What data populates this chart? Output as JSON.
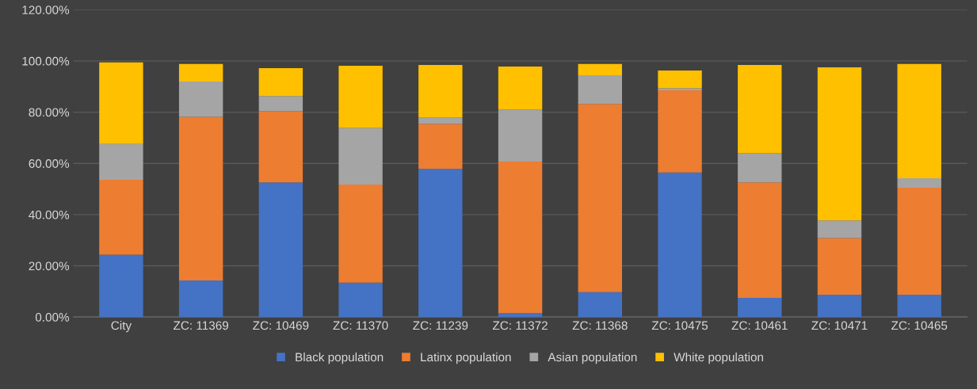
{
  "chart_data": {
    "type": "bar",
    "stacked": true,
    "categories": [
      "City",
      "ZC: 11369",
      "ZC: 10469",
      "ZC: 11370",
      "ZC: 11239",
      "ZC: 11372",
      "ZC: 11368",
      "ZC: 10475",
      "ZC: 10461",
      "ZC: 10471",
      "ZC: 10465"
    ],
    "series": [
      {
        "name": "Black population",
        "color": "#4472c4",
        "values": [
          24.3,
          14.3,
          52.6,
          13.4,
          57.9,
          1.6,
          9.7,
          56.4,
          7.5,
          8.7,
          8.7
        ]
      },
      {
        "name": "Latinx population",
        "color": "#ed7d31",
        "values": [
          29.3,
          63.9,
          27.8,
          38.3,
          17.5,
          59.1,
          73.5,
          32.1,
          45.1,
          22.1,
          41.8
        ]
      },
      {
        "name": "Asian population",
        "color": "#a5a5a5",
        "values": [
          14.0,
          13.7,
          5.9,
          22.1,
          2.5,
          20.3,
          11.2,
          0.9,
          11.3,
          6.9,
          3.7
        ]
      },
      {
        "name": "White population",
        "color": "#ffc000",
        "values": [
          31.8,
          6.9,
          10.9,
          24.3,
          20.5,
          16.8,
          4.4,
          6.9,
          34.5,
          59.8,
          44.6
        ]
      }
    ],
    "ylim": [
      0,
      120
    ],
    "yticks": [
      {
        "value": 0,
        "label": "0.00%"
      },
      {
        "value": 20,
        "label": "20.00%"
      },
      {
        "value": 40,
        "label": "40.00%"
      },
      {
        "value": 60,
        "label": "60.00%"
      },
      {
        "value": 80,
        "label": "80.00%"
      },
      {
        "value": 100,
        "label": "100.00%"
      },
      {
        "value": 120,
        "label": "120.00%"
      }
    ],
    "grid": "y",
    "legend": "bottom"
  }
}
